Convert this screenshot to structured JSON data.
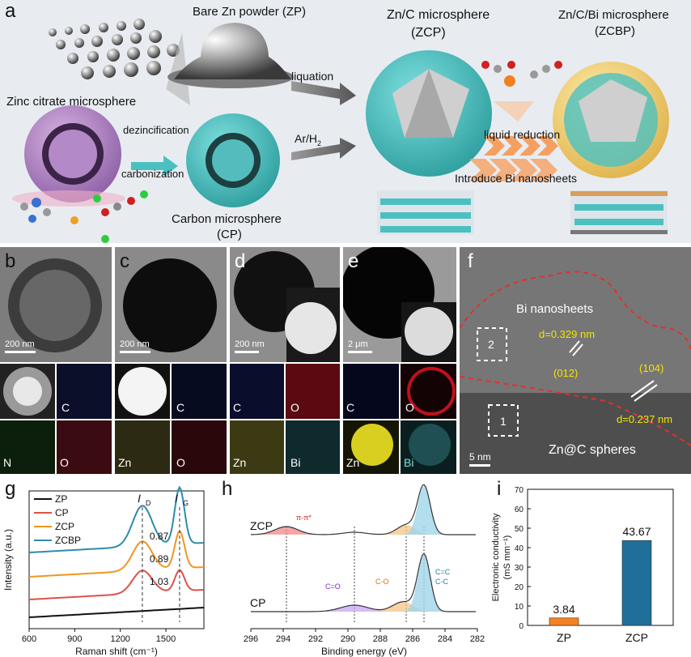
{
  "panel_labels": {
    "a": "a",
    "b": "b",
    "c": "c",
    "d": "d",
    "e": "e",
    "f": "f",
    "g": "g",
    "h": "h",
    "i": "i"
  },
  "schematic": {
    "zp": "Bare Zn powder (ZP)",
    "zinc_citrate": "Zinc citrate microsphere",
    "dezinc": "dezincification",
    "carbonization": "carbonization",
    "cp_title": "Carbon microsphere",
    "cp_abbr": "(CP)",
    "liquation": "liquation",
    "arh2_main": "Ar/H",
    "arh2_sub": "2",
    "zcp_title": "Zn/C microsphere",
    "zcp_abbr": "(ZCP)",
    "zcbp_title": "Zn/C/Bi microsphere",
    "zcbp_abbr": "(ZCBP)",
    "liquid_reduction": "liquid reduction",
    "introduce_bi": "Introduce Bi nanosheets"
  },
  "micrographs": {
    "b": {
      "scale": "200 nm",
      "maps": [
        "C",
        "N",
        "O"
      ]
    },
    "c": {
      "scale": "200 nm",
      "maps": [
        "C",
        "Zn",
        "O"
      ]
    },
    "d": {
      "scale": "200 nm",
      "maps": [
        "C",
        "O",
        "Zn",
        "Bi"
      ]
    },
    "e": {
      "scale": "2 μm",
      "maps": [
        "C",
        "O",
        "Zn",
        "Bi"
      ]
    },
    "f": {
      "bi_label": "Bi nanosheets",
      "d1": "d=0.329 nm",
      "plane1": "(012)",
      "plane2": "(104)",
      "d2": "d=0.237 nm",
      "box1": "1",
      "box2": "2",
      "scale": "5 nm",
      "zn_label": "Zn@C spheres"
    }
  },
  "chart_data": [
    {
      "id": "g",
      "type": "line",
      "xlabel": "Raman shift (cm⁻¹)",
      "ylabel": "Intensity (a.u.)",
      "xlim": [
        600,
        1750
      ],
      "xticks": [
        600,
        900,
        1200,
        1500
      ],
      "peak_labels": {
        "D": "I",
        "D_sub": "D",
        "G": "I",
        "G_sub": "G"
      },
      "series": [
        {
          "name": "ZP",
          "color": "#111111",
          "ratio": ""
        },
        {
          "name": "CP",
          "color": "#e0504a",
          "ratio": "1.03"
        },
        {
          "name": "ZCP",
          "color": "#f0961e",
          "ratio": "0.89"
        },
        {
          "name": "ZCBP",
          "color": "#2e8bab",
          "ratio": "0.87"
        }
      ],
      "peaks": {
        "D": 1345,
        "G": 1590
      }
    },
    {
      "id": "h",
      "type": "line",
      "xlabel": "Binding energy (eV)",
      "xlim": [
        296,
        282
      ],
      "xticks": [
        296,
        294,
        292,
        290,
        288,
        286,
        284,
        282
      ],
      "series": [
        {
          "name": "ZCP"
        },
        {
          "name": "CP"
        }
      ],
      "components": [
        "π-π*",
        "C=O",
        "C-O",
        "C=C",
        "C-C"
      ],
      "guides": [
        293.8,
        289.6,
        286.4,
        285.3
      ]
    },
    {
      "id": "i",
      "type": "bar",
      "categories": [
        "ZP",
        "ZCP"
      ],
      "values": [
        3.84,
        43.67
      ],
      "value_labels": [
        "3.84",
        "43.67"
      ],
      "colors": [
        "#f58220",
        "#1f6f9a"
      ],
      "ylabel": "Electronic conductivity",
      "ylabel_unit": "(mS mm⁻¹)",
      "ylim": [
        0,
        70
      ],
      "yticks": [
        0,
        10,
        20,
        30,
        40,
        50,
        60,
        70
      ]
    }
  ]
}
